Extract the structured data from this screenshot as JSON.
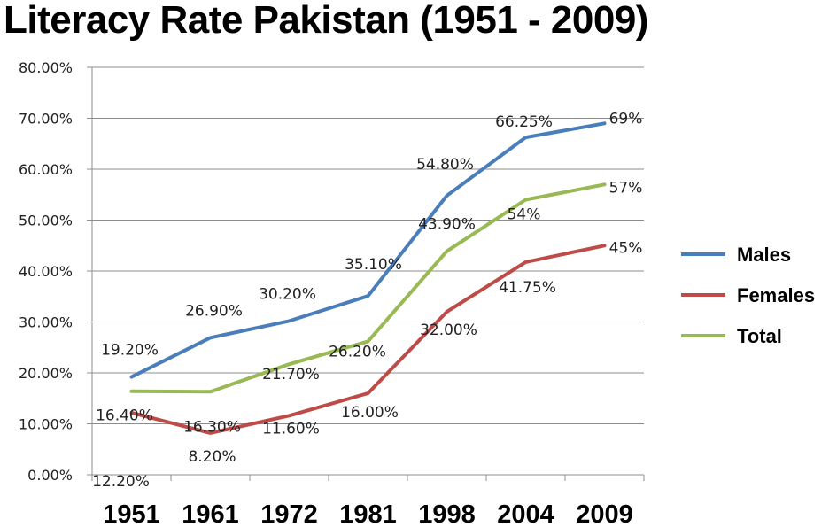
{
  "chart_data": {
    "type": "line",
    "title": "Literacy Rate Pakistan (1951 - 2009)",
    "categories": [
      "1951",
      "1961",
      "1972",
      "1981",
      "1998",
      "2004",
      "2009"
    ],
    "ylim": [
      0,
      80
    ],
    "yticks": [
      "0.00%",
      "10.00%",
      "20.00%",
      "30.00%",
      "40.00%",
      "50.00%",
      "60.00%",
      "70.00%",
      "80.00%"
    ],
    "grid": true,
    "legend": "right",
    "series": [
      {
        "name": "Males",
        "color": "#4a7ebb",
        "values": [
          19.2,
          26.9,
          30.2,
          35.1,
          54.8,
          66.25,
          69
        ],
        "labels": [
          "19.20%",
          "26.90%",
          "30.20%",
          "35.10%",
          "54.80%",
          "66.25%",
          "69%"
        ]
      },
      {
        "name": "Females",
        "color": "#be4b48",
        "values": [
          12.2,
          8.2,
          11.6,
          16.0,
          32.0,
          41.75,
          45
        ],
        "labels": [
          "12.20%",
          "8.20%",
          "11.60%",
          "16.00%",
          "32.00%",
          "41.75%",
          "45%"
        ]
      },
      {
        "name": "Total",
        "color": "#98b954",
        "values": [
          16.4,
          16.3,
          21.7,
          26.2,
          43.9,
          54,
          57
        ],
        "labels": [
          "16.40%",
          "16.30%",
          "21.70%",
          "26.20%",
          "43.90%",
          "54%",
          "57%"
        ]
      }
    ]
  }
}
